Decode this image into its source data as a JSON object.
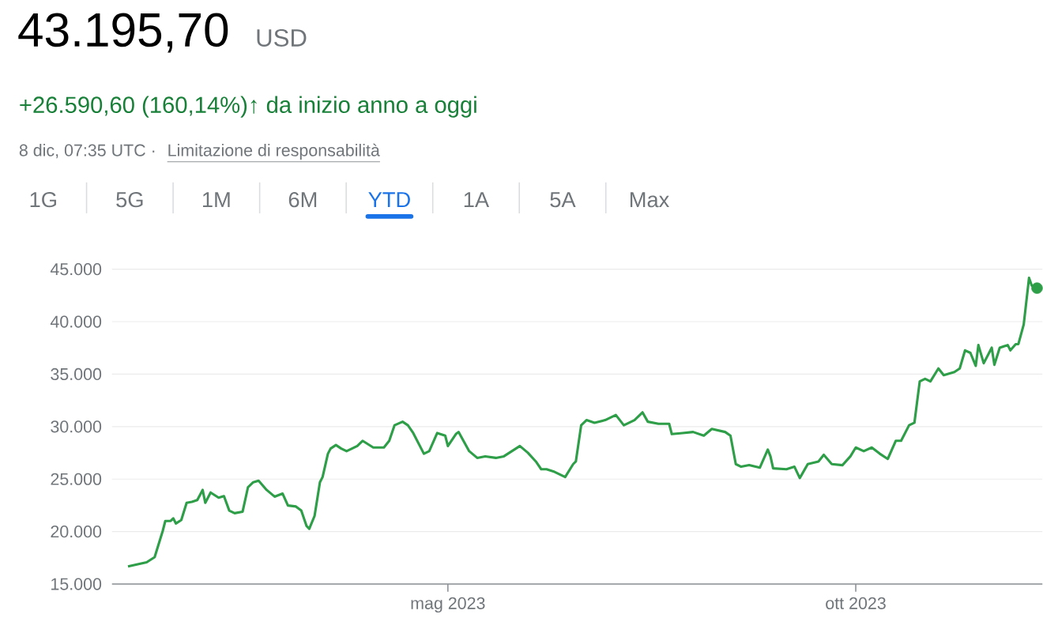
{
  "chart_data": {
    "type": "line",
    "title": "43.195,70",
    "annotations": [
      "USD",
      "+26.590,60 (160,14%)↑ da inizio anno a oggi",
      "8 dic, 07:35 UTC ·",
      "Limitazione di responsabilità",
      "1G",
      "5G",
      "1M",
      "6M",
      "YTD",
      "1A",
      "5A",
      "Max"
    ],
    "xlim": [
      "2022-12-26",
      "2023-12-10"
    ],
    "xticks": [
      {
        "value": "2023-05-01",
        "label": "mag 2023"
      },
      {
        "value": "2023-10-01",
        "label": "ott 2023"
      }
    ],
    "ylim": [
      15000,
      45000
    ],
    "yticks": [
      {
        "value": 15000,
        "label": "15.000"
      },
      {
        "value": 20000,
        "label": "20.000"
      },
      {
        "value": 25000,
        "label": "25.000"
      },
      {
        "value": 30000,
        "label": "30.000"
      },
      {
        "value": 35000,
        "label": "35.000"
      },
      {
        "value": 40000,
        "label": "40.000"
      },
      {
        "value": 45000,
        "label": "45.000"
      }
    ],
    "grid": "y",
    "series": [
      {
        "color": "#2e9e48",
        "x": [
          "2023-01-01",
          "2023-01-08",
          "2023-01-11",
          "2023-01-14",
          "2023-01-15",
          "2023-01-17",
          "2023-01-18",
          "2023-01-19",
          "2023-01-21",
          "2023-01-23",
          "2023-01-25",
          "2023-01-27",
          "2023-01-29",
          "2023-01-30",
          "2023-02-01",
          "2023-02-04",
          "2023-02-06",
          "2023-02-08",
          "2023-02-10",
          "2023-02-13",
          "2023-02-15",
          "2023-02-17",
          "2023-02-19",
          "2023-02-22",
          "2023-02-25",
          "2023-02-28",
          "2023-03-02",
          "2023-03-05",
          "2023-03-07",
          "2023-03-09",
          "2023-03-10",
          "2023-03-12",
          "2023-03-14",
          "2023-03-15",
          "2023-03-17",
          "2023-03-18",
          "2023-03-20",
          "2023-03-22",
          "2023-03-24",
          "2023-03-28",
          "2023-03-30",
          "2023-04-03",
          "2023-04-07",
          "2023-04-09",
          "2023-04-11",
          "2023-04-14",
          "2023-04-16",
          "2023-04-18",
          "2023-04-22",
          "2023-04-24",
          "2023-04-27",
          "2023-04-30",
          "2023-05-01",
          "2023-05-04",
          "2023-05-05",
          "2023-05-09",
          "2023-05-12",
          "2023-05-15",
          "2023-05-19",
          "2023-05-22",
          "2023-05-25",
          "2023-05-28",
          "2023-05-31",
          "2023-06-03",
          "2023-06-05",
          "2023-06-07",
          "2023-06-10",
          "2023-06-14",
          "2023-06-17",
          "2023-06-18",
          "2023-06-20",
          "2023-06-22",
          "2023-06-25",
          "2023-06-29",
          "2023-07-03",
          "2023-07-06",
          "2023-07-10",
          "2023-07-13",
          "2023-07-15",
          "2023-07-19",
          "2023-07-23",
          "2023-07-24",
          "2023-07-28",
          "2023-08-01",
          "2023-08-05",
          "2023-08-08",
          "2023-08-13",
          "2023-08-15",
          "2023-08-17",
          "2023-08-19",
          "2023-08-22",
          "2023-08-26",
          "2023-08-29",
          "2023-08-30",
          "2023-08-31",
          "2023-09-05",
          "2023-09-08",
          "2023-09-10",
          "2023-09-13",
          "2023-09-17",
          "2023-09-19",
          "2023-09-22",
          "2023-09-26",
          "2023-09-29",
          "2023-10-01",
          "2023-10-04",
          "2023-10-07",
          "2023-10-10",
          "2023-10-13",
          "2023-10-16",
          "2023-10-18",
          "2023-10-21",
          "2023-10-23",
          "2023-10-25",
          "2023-10-27",
          "2023-10-29",
          "2023-11-01",
          "2023-11-03",
          "2023-11-07",
          "2023-11-09",
          "2023-11-11",
          "2023-11-13",
          "2023-11-15",
          "2023-11-16",
          "2023-11-18",
          "2023-11-21",
          "2023-11-22",
          "2023-11-24",
          "2023-11-27",
          "2023-11-28",
          "2023-11-30",
          "2023-12-01",
          "2023-12-03",
          "2023-12-05",
          "2023-12-06",
          "2023-12-08"
        ],
        "values": [
          16680,
          17070,
          17560,
          20030,
          21010,
          21010,
          21260,
          20770,
          21100,
          22740,
          22830,
          23000,
          23970,
          22740,
          23720,
          23230,
          23380,
          22000,
          21750,
          21900,
          24210,
          24700,
          24850,
          23970,
          23330,
          23620,
          22490,
          22390,
          22000,
          20520,
          20270,
          21500,
          24700,
          25200,
          27420,
          27910,
          28250,
          27910,
          27660,
          28150,
          28650,
          28010,
          28010,
          28650,
          30130,
          30470,
          30130,
          29390,
          27420,
          27660,
          29390,
          29140,
          28150,
          29290,
          29490,
          27660,
          27020,
          27170,
          27020,
          27170,
          27660,
          28150,
          27510,
          26680,
          25940,
          25940,
          25690,
          25200,
          26430,
          26680,
          30130,
          30620,
          30370,
          30620,
          31110,
          30130,
          30620,
          31360,
          30470,
          30270,
          30270,
          29290,
          29390,
          29490,
          29140,
          29780,
          29490,
          29140,
          26430,
          26180,
          26330,
          26090,
          27810,
          27170,
          26030,
          25940,
          26180,
          25100,
          26430,
          26680,
          27320,
          26430,
          26330,
          27170,
          28010,
          27660,
          28010,
          27420,
          26920,
          28650,
          28650,
          30130,
          30370,
          34310,
          34560,
          34310,
          35540,
          34900,
          35200,
          35540,
          37270,
          37030,
          35790,
          37770,
          36040,
          37520,
          35890,
          37520,
          37770,
          37270,
          37860,
          37860,
          39730,
          44170,
          43440,
          43195.7
        ]
      }
    ]
  }
}
